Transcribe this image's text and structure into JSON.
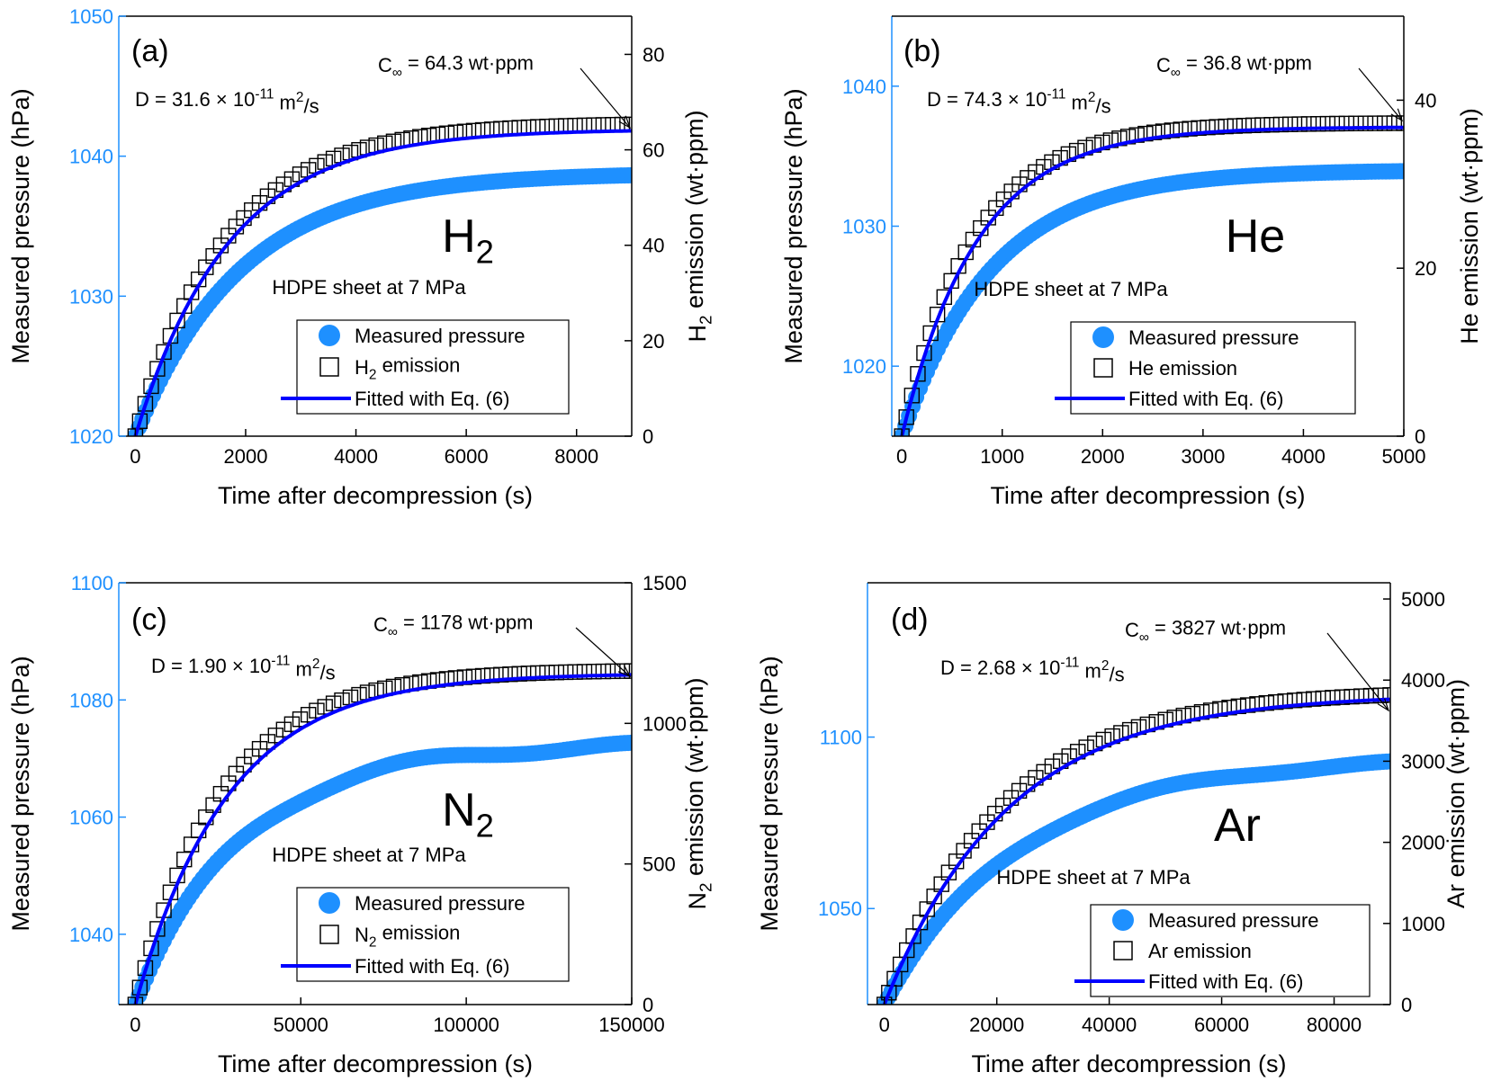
{
  "colors": {
    "pressure": "#1E90FF",
    "left_axis": "#1E90FF",
    "emission": "#000000",
    "fit": "#0000FF",
    "right_axis": "#000000"
  },
  "chart_data": [
    {
      "type": "scatter",
      "panel_label": "(a)",
      "gas": "H",
      "gas_sub": "2",
      "sample_text": "HDPE sheet at 7 MPa",
      "d_text": {
        "pre": "D = 31.6 × 10",
        "sup1": "-11",
        "mid": " m",
        "sup2": "2",
        "post": "/s"
      },
      "cinf_text": {
        "pre": "C",
        "sub": "∞",
        "post": " = 64.3 wt·ppm"
      },
      "xlabel": "Time after decompression (s)",
      "ylabel_left": "Measured pressure (hPa)",
      "ylabel_right": {
        "pre": "H",
        "sub": "2",
        "post": " emission (wt·ppm)"
      },
      "xlim": [
        -300,
        9000
      ],
      "xticks": [
        0,
        2000,
        4000,
        6000,
        8000
      ],
      "ylim_left": [
        1020,
        1050
      ],
      "yticks_left": [
        1020,
        1030,
        1040,
        1050
      ],
      "ylim_right": [
        0,
        88
      ],
      "yticks_right": [
        0,
        20,
        40,
        60,
        80
      ],
      "legend": [
        {
          "marker": "circle",
          "text": "Measured pressure",
          "sub": "",
          "post": ""
        },
        {
          "marker": "square",
          "text": "H",
          "sub": "2",
          "post": " emission"
        },
        {
          "marker": "line",
          "text": "Fitted with Eq. (6)",
          "sub": "",
          "post": ""
        }
      ],
      "fit": {
        "c_inf": 64.3,
        "tau": 1700,
        "t_max": 9000
      },
      "pressure_series": {
        "p0": 1020,
        "p_inf": 1038.8,
        "tau": 1900,
        "t_max": 9000
      },
      "emission_series": {
        "c_inf": 65.6,
        "tau": 1650,
        "t_max": 9000
      }
    },
    {
      "type": "scatter",
      "panel_label": "(b)",
      "gas": "He",
      "gas_sub": "",
      "sample_text": "HDPE sheet at 7 MPa",
      "d_text": {
        "pre": "D = 74.3 × 10",
        "sup1": "-11",
        "mid": " m",
        "sup2": "2",
        "post": "/s"
      },
      "cinf_text": {
        "pre": "C",
        "sub": "∞",
        "post": " = 36.8 wt·ppm"
      },
      "xlabel": "Time after decompression (s)",
      "ylabel_left": "Measured pressure (hPa)",
      "ylabel_right": {
        "pre": "He emission (wt·ppm)",
        "sub": "",
        "post": ""
      },
      "xlim": [
        -100,
        5000
      ],
      "xticks": [
        0,
        1000,
        2000,
        3000,
        4000,
        5000
      ],
      "ylim_left": [
        1015,
        1045
      ],
      "yticks_left": [
        1020,
        1030,
        1040
      ],
      "ylim_right": [
        0,
        50
      ],
      "yticks_right": [
        0,
        20,
        40
      ],
      "legend": [
        {
          "marker": "circle",
          "text": "Measured pressure",
          "sub": "",
          "post": ""
        },
        {
          "marker": "square",
          "text": "He emission",
          "sub": "",
          "post": ""
        },
        {
          "marker": "line",
          "text": "Fitted with Eq. (6)",
          "sub": "",
          "post": ""
        }
      ],
      "fit": {
        "c_inf": 36.8,
        "tau": 750,
        "t_max": 5000
      },
      "pressure_series": {
        "p0": 1015,
        "p_inf": 1034,
        "tau": 900,
        "t_max": 5000
      },
      "emission_series": {
        "c_inf": 37.3,
        "tau": 720,
        "t_max": 5000
      }
    },
    {
      "type": "scatter",
      "panel_label": "(c)",
      "gas": "N",
      "gas_sub": "2",
      "sample_text": "HDPE sheet at 7 MPa",
      "d_text": {
        "pre": "D = 1.90 × 10",
        "sup1": "-11",
        "mid": " m",
        "sup2": "2",
        "post": "/s"
      },
      "cinf_text": {
        "pre": "C",
        "sub": "∞",
        "post": " = 1178 wt·ppm"
      },
      "xlabel": "Time after decompression (s)",
      "ylabel_left": "Measured pressure (hPa)",
      "ylabel_right": {
        "pre": "N",
        "sub": "2",
        "post": " emission (wt·ppm)"
      },
      "xlim": [
        -5000,
        150000
      ],
      "xticks": [
        0,
        50000,
        100000,
        150000
      ],
      "ylim_left": [
        1028,
        1100
      ],
      "yticks_left": [
        1040,
        1060,
        1080,
        1100
      ],
      "ylim_right": [
        0,
        1500
      ],
      "yticks_right": [
        0,
        500,
        1000,
        1500
      ],
      "legend": [
        {
          "marker": "circle",
          "text": "Measured pressure",
          "sub": "",
          "post": ""
        },
        {
          "marker": "square",
          "text": "N",
          "sub": "2",
          "post": " emission"
        },
        {
          "marker": "line",
          "text": "Fitted with Eq. (6)",
          "sub": "",
          "post": ""
        }
      ],
      "fit": {
        "c_inf": 1178,
        "tau": 28000,
        "t_max": 150000
      },
      "pressure_series": {
        "p0": 1028,
        "p_inf": 1072.5,
        "tau": 32000,
        "t_max": 150000
      },
      "emission_series": {
        "c_inf": 1190,
        "tau": 26000,
        "t_max": 150000
      }
    },
    {
      "type": "scatter",
      "panel_label": "(d)",
      "gas": "Ar",
      "gas_sub": "",
      "sample_text": "HDPE sheet at 7 MPa",
      "d_text": {
        "pre": "D = 2.68 × 10",
        "sup1": "-11",
        "mid": " m",
        "sup2": "2",
        "post": "/s"
      },
      "cinf_text": {
        "pre": "C",
        "sub": "∞",
        "post": " = 3827 wt·ppm"
      },
      "xlabel": "Time after decompression (s)",
      "ylabel_left": "Measured pressure (hPa)",
      "ylabel_right": {
        "pre": "Ar emission (wt·ppm)",
        "sub": "",
        "post": ""
      },
      "xlim": [
        -3000,
        90000
      ],
      "xticks": [
        0,
        20000,
        40000,
        60000,
        80000
      ],
      "ylim_left": [
        1022,
        1145
      ],
      "yticks_left": [
        1050,
        1100
      ],
      "ylim_right": [
        0,
        5200
      ],
      "yticks_right": [
        0,
        1000,
        2000,
        3000,
        4000,
        5000
      ],
      "legend": [
        {
          "marker": "circle",
          "text": "Measured pressure",
          "sub": "",
          "post": ""
        },
        {
          "marker": "square",
          "text": "Ar emission",
          "sub": "",
          "post": ""
        },
        {
          "marker": "line",
          "text": "Fitted with Eq. (6)",
          "sub": "",
          "post": ""
        }
      ],
      "fit": {
        "c_inf": 3827,
        "tau": 22000,
        "t_max": 90000
      },
      "pressure_series": {
        "p0": 1022,
        "p_inf": 1094,
        "tau": 24000,
        "t_max": 90000
      },
      "emission_series": {
        "c_inf": 3870,
        "tau": 21000,
        "t_max": 90000
      }
    }
  ]
}
